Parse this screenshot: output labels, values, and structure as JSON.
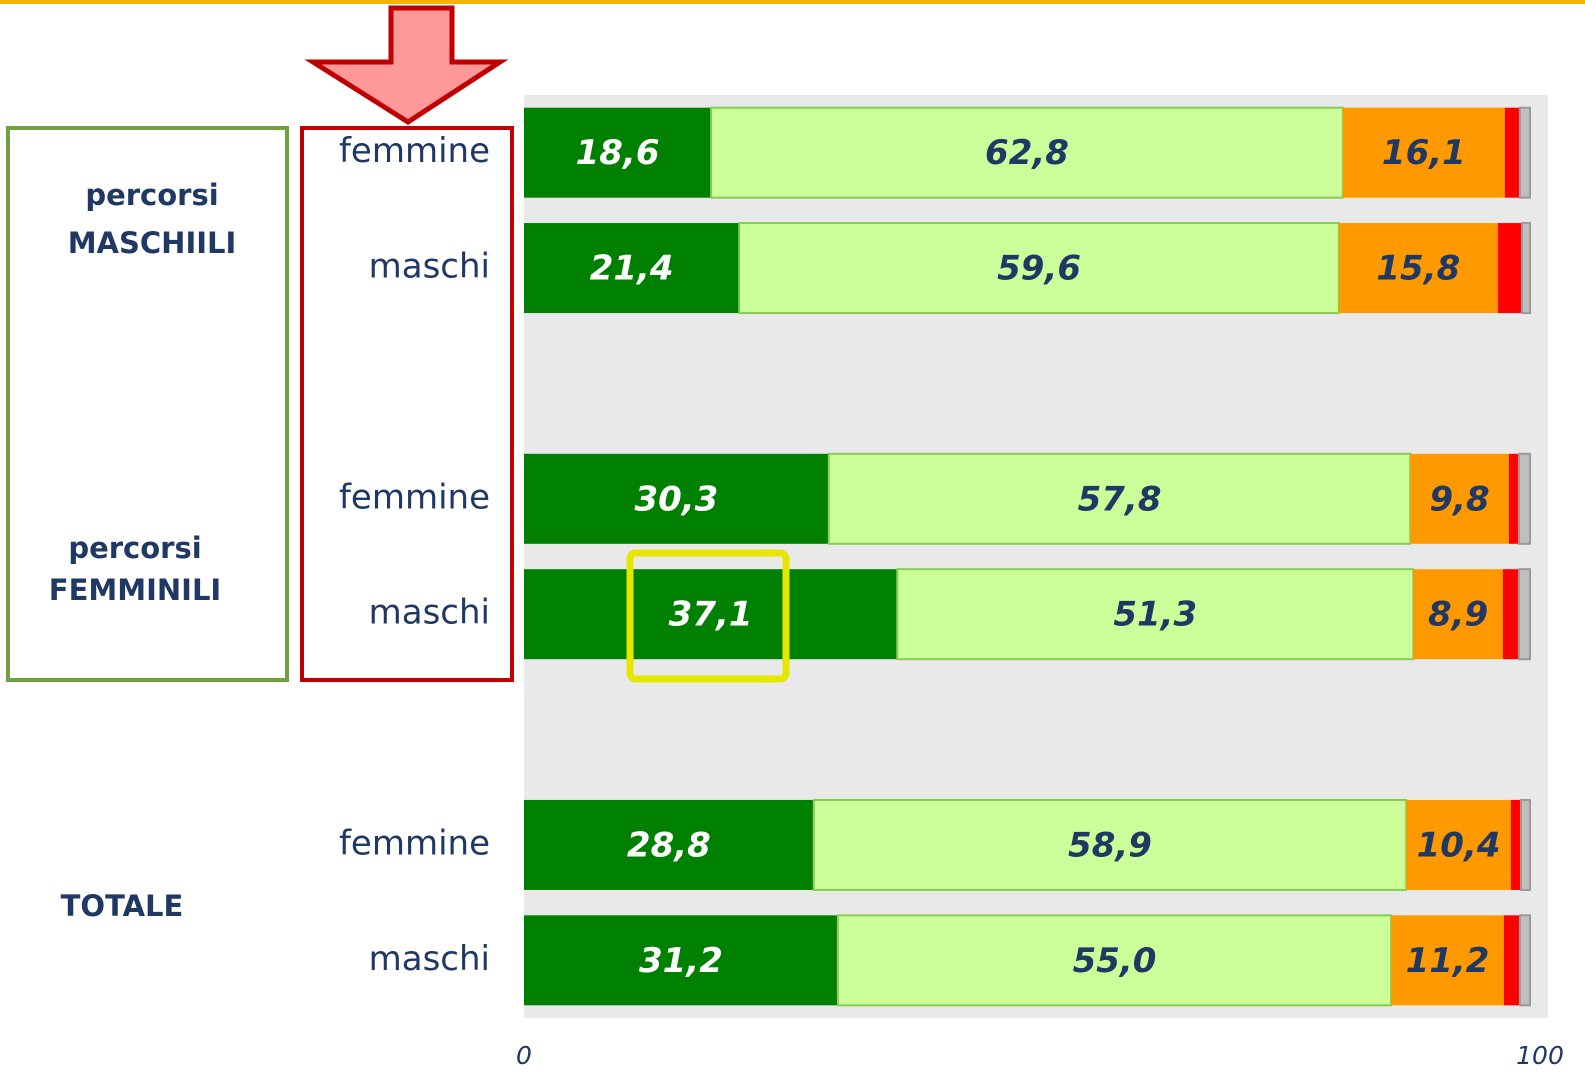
{
  "chart_data": {
    "type": "stacked-bar-horizontal",
    "categories": [
      "femmine",
      "maschi",
      null,
      "femmine",
      "maschi",
      null,
      "femmine",
      "maschi"
    ],
    "groups": [
      [
        "percorsi",
        "MASCHIILI"
      ],
      [
        "percorsi",
        "FEMMINILI"
      ],
      [
        "TOTALE"
      ]
    ],
    "series": [
      {
        "color": "#008000",
        "values": [
          18.6,
          21.4,
          null,
          30.3,
          37.1,
          null,
          28.8,
          31.2
        ],
        "value_labels": [
          "18,6",
          "21,4",
          null,
          "30,3",
          "37,1",
          null,
          "28,8",
          "31,2"
        ]
      },
      {
        "color": "#ccff99",
        "values": [
          62.8,
          59.6,
          null,
          57.8,
          51.3,
          null,
          58.9,
          55.0
        ],
        "value_labels": [
          "62,8",
          "59,6",
          null,
          "57,8",
          "51,3",
          null,
          "58,9",
          "55,0"
        ]
      },
      {
        "color": "#ff9900",
        "values": [
          16.1,
          15.8,
          null,
          9.8,
          8.9,
          null,
          10.4,
          11.2
        ],
        "value_labels": [
          "16,1",
          "15,8",
          null,
          "9,8",
          "8,9",
          null,
          "10,4",
          "11,2"
        ]
      },
      {
        "color": "#ff0000",
        "values": [
          1.5,
          2.4,
          null,
          1.0,
          1.6,
          null,
          1.0,
          1.6
        ]
      },
      {
        "color": "#bfbfbf",
        "values": [
          1.0,
          0.8,
          null,
          1.1,
          1.1,
          null,
          0.9,
          1.0
        ]
      }
    ],
    "xlim": [
      0,
      100
    ],
    "xticks": [
      0,
      100
    ]
  }
}
